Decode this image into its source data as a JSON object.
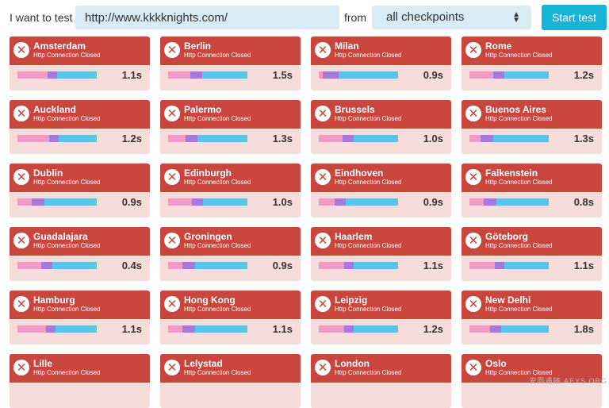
{
  "toolbar": {
    "label_test": "I want to test",
    "url_value": "http://www.kkkknights.com/",
    "label_from": "from",
    "select_value": "all checkpoints",
    "start_label": "Start test"
  },
  "colors": {
    "fail": "#c9463f",
    "fail_bg": "#f7dcdc",
    "dns": "#f49ac9",
    "connect": "#a879d6",
    "wait": "#59c5e2",
    "accent": "#17b4d8"
  },
  "status_text": "Http Connection Closed",
  "cards": [
    {
      "city": "Amsterdam",
      "time": "1.1s",
      "segments": [
        0.38,
        0.12,
        0.5
      ]
    },
    {
      "city": "Berlin",
      "time": "1.5s",
      "segments": [
        0.28,
        0.15,
        0.57
      ]
    },
    {
      "city": "Milan",
      "time": "0.9s",
      "segments": [
        0.05,
        0.2,
        0.75
      ]
    },
    {
      "city": "Rome",
      "time": "1.2s",
      "segments": [
        0.3,
        0.14,
        0.56
      ]
    },
    {
      "city": "Auckland",
      "time": "1.2s",
      "segments": [
        0.4,
        0.12,
        0.48
      ]
    },
    {
      "city": "Palermo",
      "time": "1.3s",
      "segments": [
        0.22,
        0.15,
        0.63
      ]
    },
    {
      "city": "Brussels",
      "time": "1.0s",
      "segments": [
        0.3,
        0.14,
        0.56
      ]
    },
    {
      "city": "Buenos Aires",
      "time": "1.3s",
      "segments": [
        0.14,
        0.16,
        0.7
      ]
    },
    {
      "city": "Dublin",
      "time": "0.9s",
      "segments": [
        0.18,
        0.16,
        0.66
      ]
    },
    {
      "city": "Edinburgh",
      "time": "1.0s",
      "segments": [
        0.3,
        0.14,
        0.56
      ]
    },
    {
      "city": "Eindhoven",
      "time": "0.9s",
      "segments": [
        0.2,
        0.14,
        0.66
      ]
    },
    {
      "city": "Falkenstein",
      "time": "0.8s",
      "segments": [
        0.18,
        0.16,
        0.66
      ]
    },
    {
      "city": "Guadalajara",
      "time": "0.4s",
      "segments": [
        0.3,
        0.14,
        0.56
      ]
    },
    {
      "city": "Groningen",
      "time": "0.9s",
      "segments": [
        0.18,
        0.16,
        0.66
      ]
    },
    {
      "city": "Haarlem",
      "time": "1.1s",
      "segments": [
        0.32,
        0.12,
        0.56
      ]
    },
    {
      "city": "Göteborg",
      "time": "1.1s",
      "segments": [
        0.32,
        0.12,
        0.56
      ]
    },
    {
      "city": "Hamburg",
      "time": "1.1s",
      "segments": [
        0.36,
        0.12,
        0.52
      ]
    },
    {
      "city": "Hong Kong",
      "time": "1.1s",
      "segments": [
        0.18,
        0.16,
        0.66
      ]
    },
    {
      "city": "Leipzig",
      "time": "1.2s",
      "segments": [
        0.32,
        0.12,
        0.56
      ]
    },
    {
      "city": "New Delhi",
      "time": "1.8s",
      "segments": [
        0.26,
        0.14,
        0.6
      ]
    },
    {
      "city": "Lille",
      "time": "",
      "segments": []
    },
    {
      "city": "Lelystad",
      "time": "",
      "segments": []
    },
    {
      "city": "London",
      "time": "",
      "segments": []
    },
    {
      "city": "Oslo",
      "time": "",
      "segments": []
    }
  ],
  "watermark": "安而遇随 AEYS.ORG"
}
